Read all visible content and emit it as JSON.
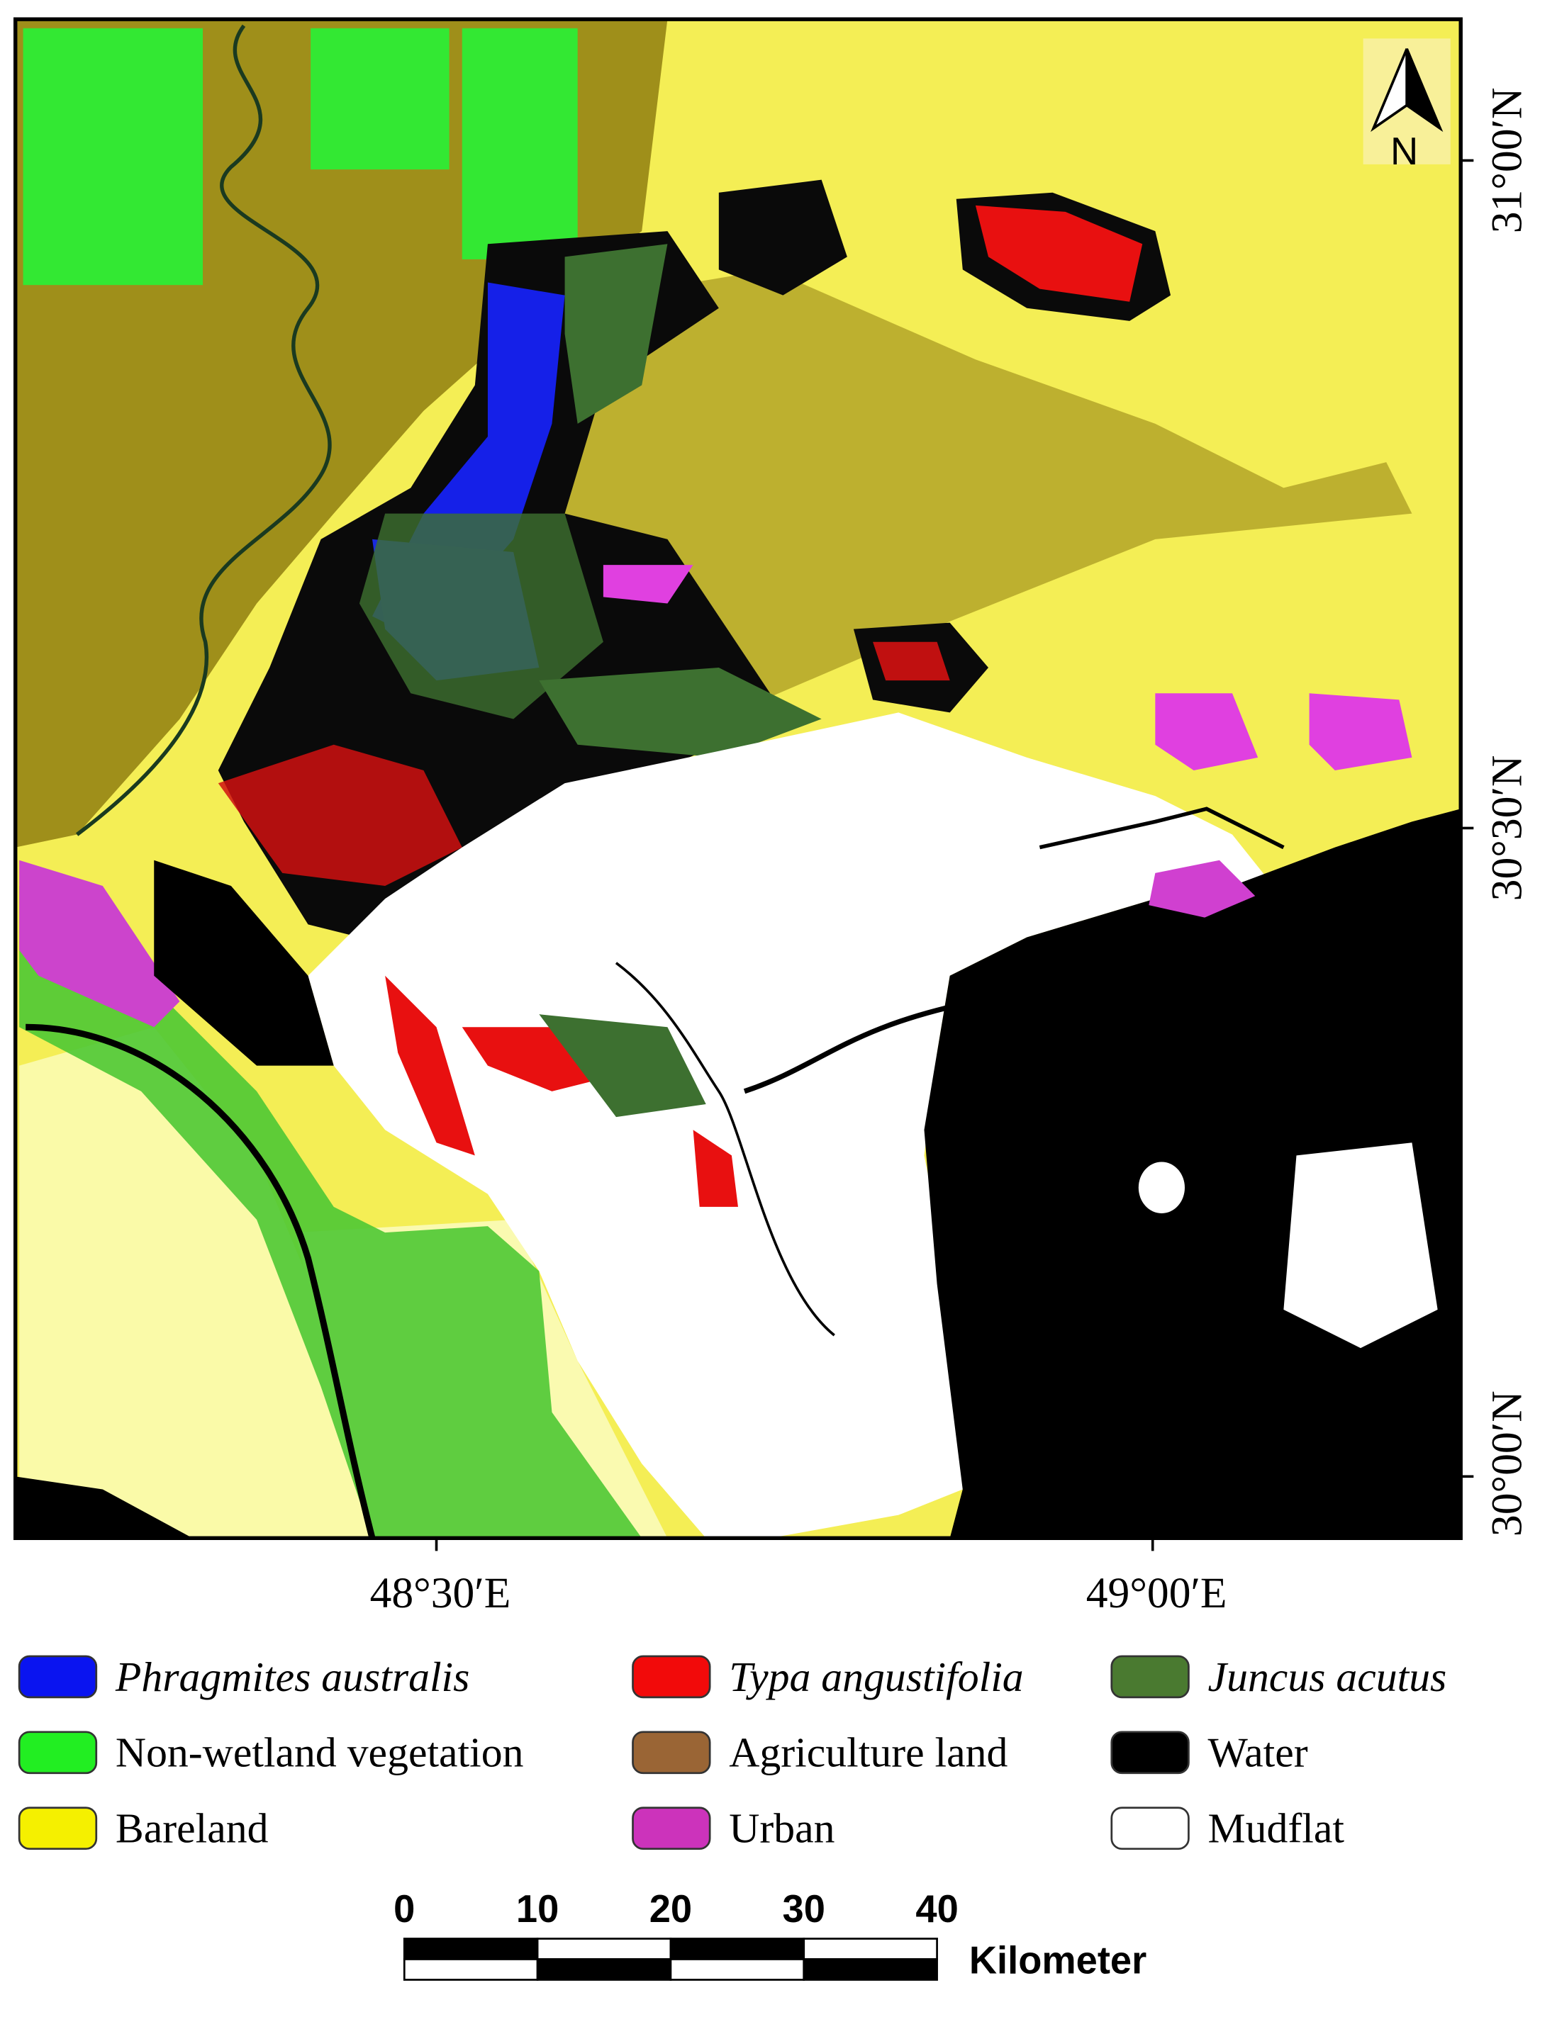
{
  "map": {
    "north_label": "N",
    "lat_labels": [
      "31°00′N",
      "30°30′N",
      "30°00′N"
    ],
    "lon_labels": [
      "48°30′E",
      "49°00′E"
    ]
  },
  "legend": [
    {
      "label": "Phragmites australis",
      "color": "#0a14f0",
      "italic": true
    },
    {
      "label": "Non-wetland vegetation",
      "color": "#22ee22",
      "italic": false
    },
    {
      "label": "Bareland",
      "color": "#f5f000",
      "italic": false
    },
    {
      "label": "Typa angustifolia",
      "color": "#f20a0a",
      "italic": true
    },
    {
      "label": "Agriculture land",
      "color": "#9a6535",
      "italic": false
    },
    {
      "label": "Urban",
      "color": "#cc33bb",
      "italic": false
    },
    {
      "label": "Juncus acutus",
      "color": "#4a7a30",
      "italic": true
    },
    {
      "label": "Water",
      "color": "#000000",
      "italic": false
    },
    {
      "label": "Mudflat",
      "color": "#ffffff",
      "italic": false
    }
  ],
  "scale_bar": {
    "ticks": [
      0,
      10,
      20,
      30,
      40
    ],
    "unit": "Kilometer"
  }
}
